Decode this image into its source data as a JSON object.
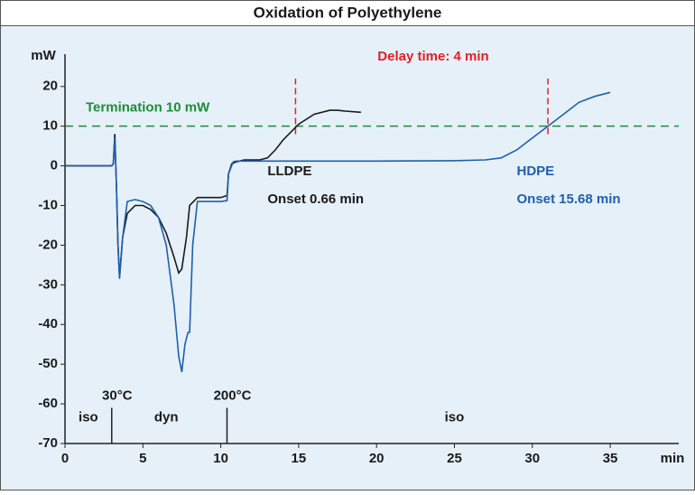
{
  "chart_data": {
    "type": "line",
    "title": "Oxidation of Polyethylene",
    "y_unit": "mW",
    "x_unit": "min",
    "xlim": [
      0,
      39.4
    ],
    "ylim": [
      -70,
      27
    ],
    "xticks": [
      0,
      5,
      10,
      15,
      20,
      25,
      30,
      35
    ],
    "yticks": [
      -70,
      -60,
      -50,
      -40,
      -30,
      -20,
      -10,
      0,
      10,
      20
    ],
    "series": [
      {
        "name": "LLDPE",
        "color": "#1a1a1a",
        "x": [
          0,
          3,
          3.1,
          3.2,
          3.3,
          3.4,
          3.5,
          3.7,
          4,
          4.5,
          5,
          5.5,
          6,
          6.5,
          7,
          7.3,
          7.5,
          7.8,
          8,
          8.5,
          9,
          10,
          10.4,
          10.5,
          10.7,
          11,
          11.5,
          12,
          12.5,
          13,
          13.5,
          14,
          14.5,
          15,
          16,
          17,
          17.5,
          18,
          19
        ],
        "values": [
          0,
          0,
          0.5,
          8,
          -5,
          -20,
          -28,
          -18,
          -12,
          -10,
          -10,
          -11,
          -13,
          -17,
          -23,
          -27,
          -26,
          -18,
          -10,
          -8,
          -8,
          -8,
          -7.5,
          -2,
          0.5,
          1,
          1.5,
          1.5,
          1.5,
          2,
          4,
          6.5,
          8.5,
          10.5,
          13,
          14,
          14,
          13.8,
          13.5
        ]
      },
      {
        "name": "HDPE",
        "color": "#1f5fae",
        "x": [
          0,
          3,
          3.1,
          3.2,
          3.3,
          3.4,
          3.5,
          3.7,
          4,
          4.5,
          5,
          5.5,
          6,
          6.5,
          7,
          7.3,
          7.5,
          7.7,
          7.9,
          8,
          8.2,
          8.5,
          9,
          10,
          10.4,
          10.5,
          10.8,
          11,
          12,
          15,
          20,
          25,
          27,
          28,
          29,
          30,
          31,
          32,
          33,
          34,
          35
        ],
        "values": [
          0,
          0,
          0.5,
          7,
          -5,
          -20,
          -28.5,
          -18,
          -9,
          -8.5,
          -9,
          -10,
          -13,
          -20,
          -35,
          -48,
          -52,
          -45,
          -42,
          -42,
          -20,
          -9,
          -9,
          -9,
          -8.8,
          -2,
          1,
          1.2,
          1.2,
          1.2,
          1.2,
          1.3,
          1.5,
          2,
          4,
          7,
          10,
          13,
          16,
          17.5,
          18.5
        ]
      }
    ],
    "threshold": {
      "value": 10,
      "label": "Termination 10 mW",
      "color": "#1e8c3a"
    },
    "delay": {
      "label": "Delay time: 4 min",
      "color": "#e0202a",
      "markers": [
        14.8,
        31
      ]
    },
    "onsets": [
      "Onset 0.66 min",
      "Onset 15.68 min"
    ],
    "segments": {
      "markers": [
        3,
        10.4
      ],
      "marker_labels": [
        "30°C",
        "200°C"
      ],
      "labels": [
        "iso",
        "dyn",
        "iso"
      ]
    }
  }
}
